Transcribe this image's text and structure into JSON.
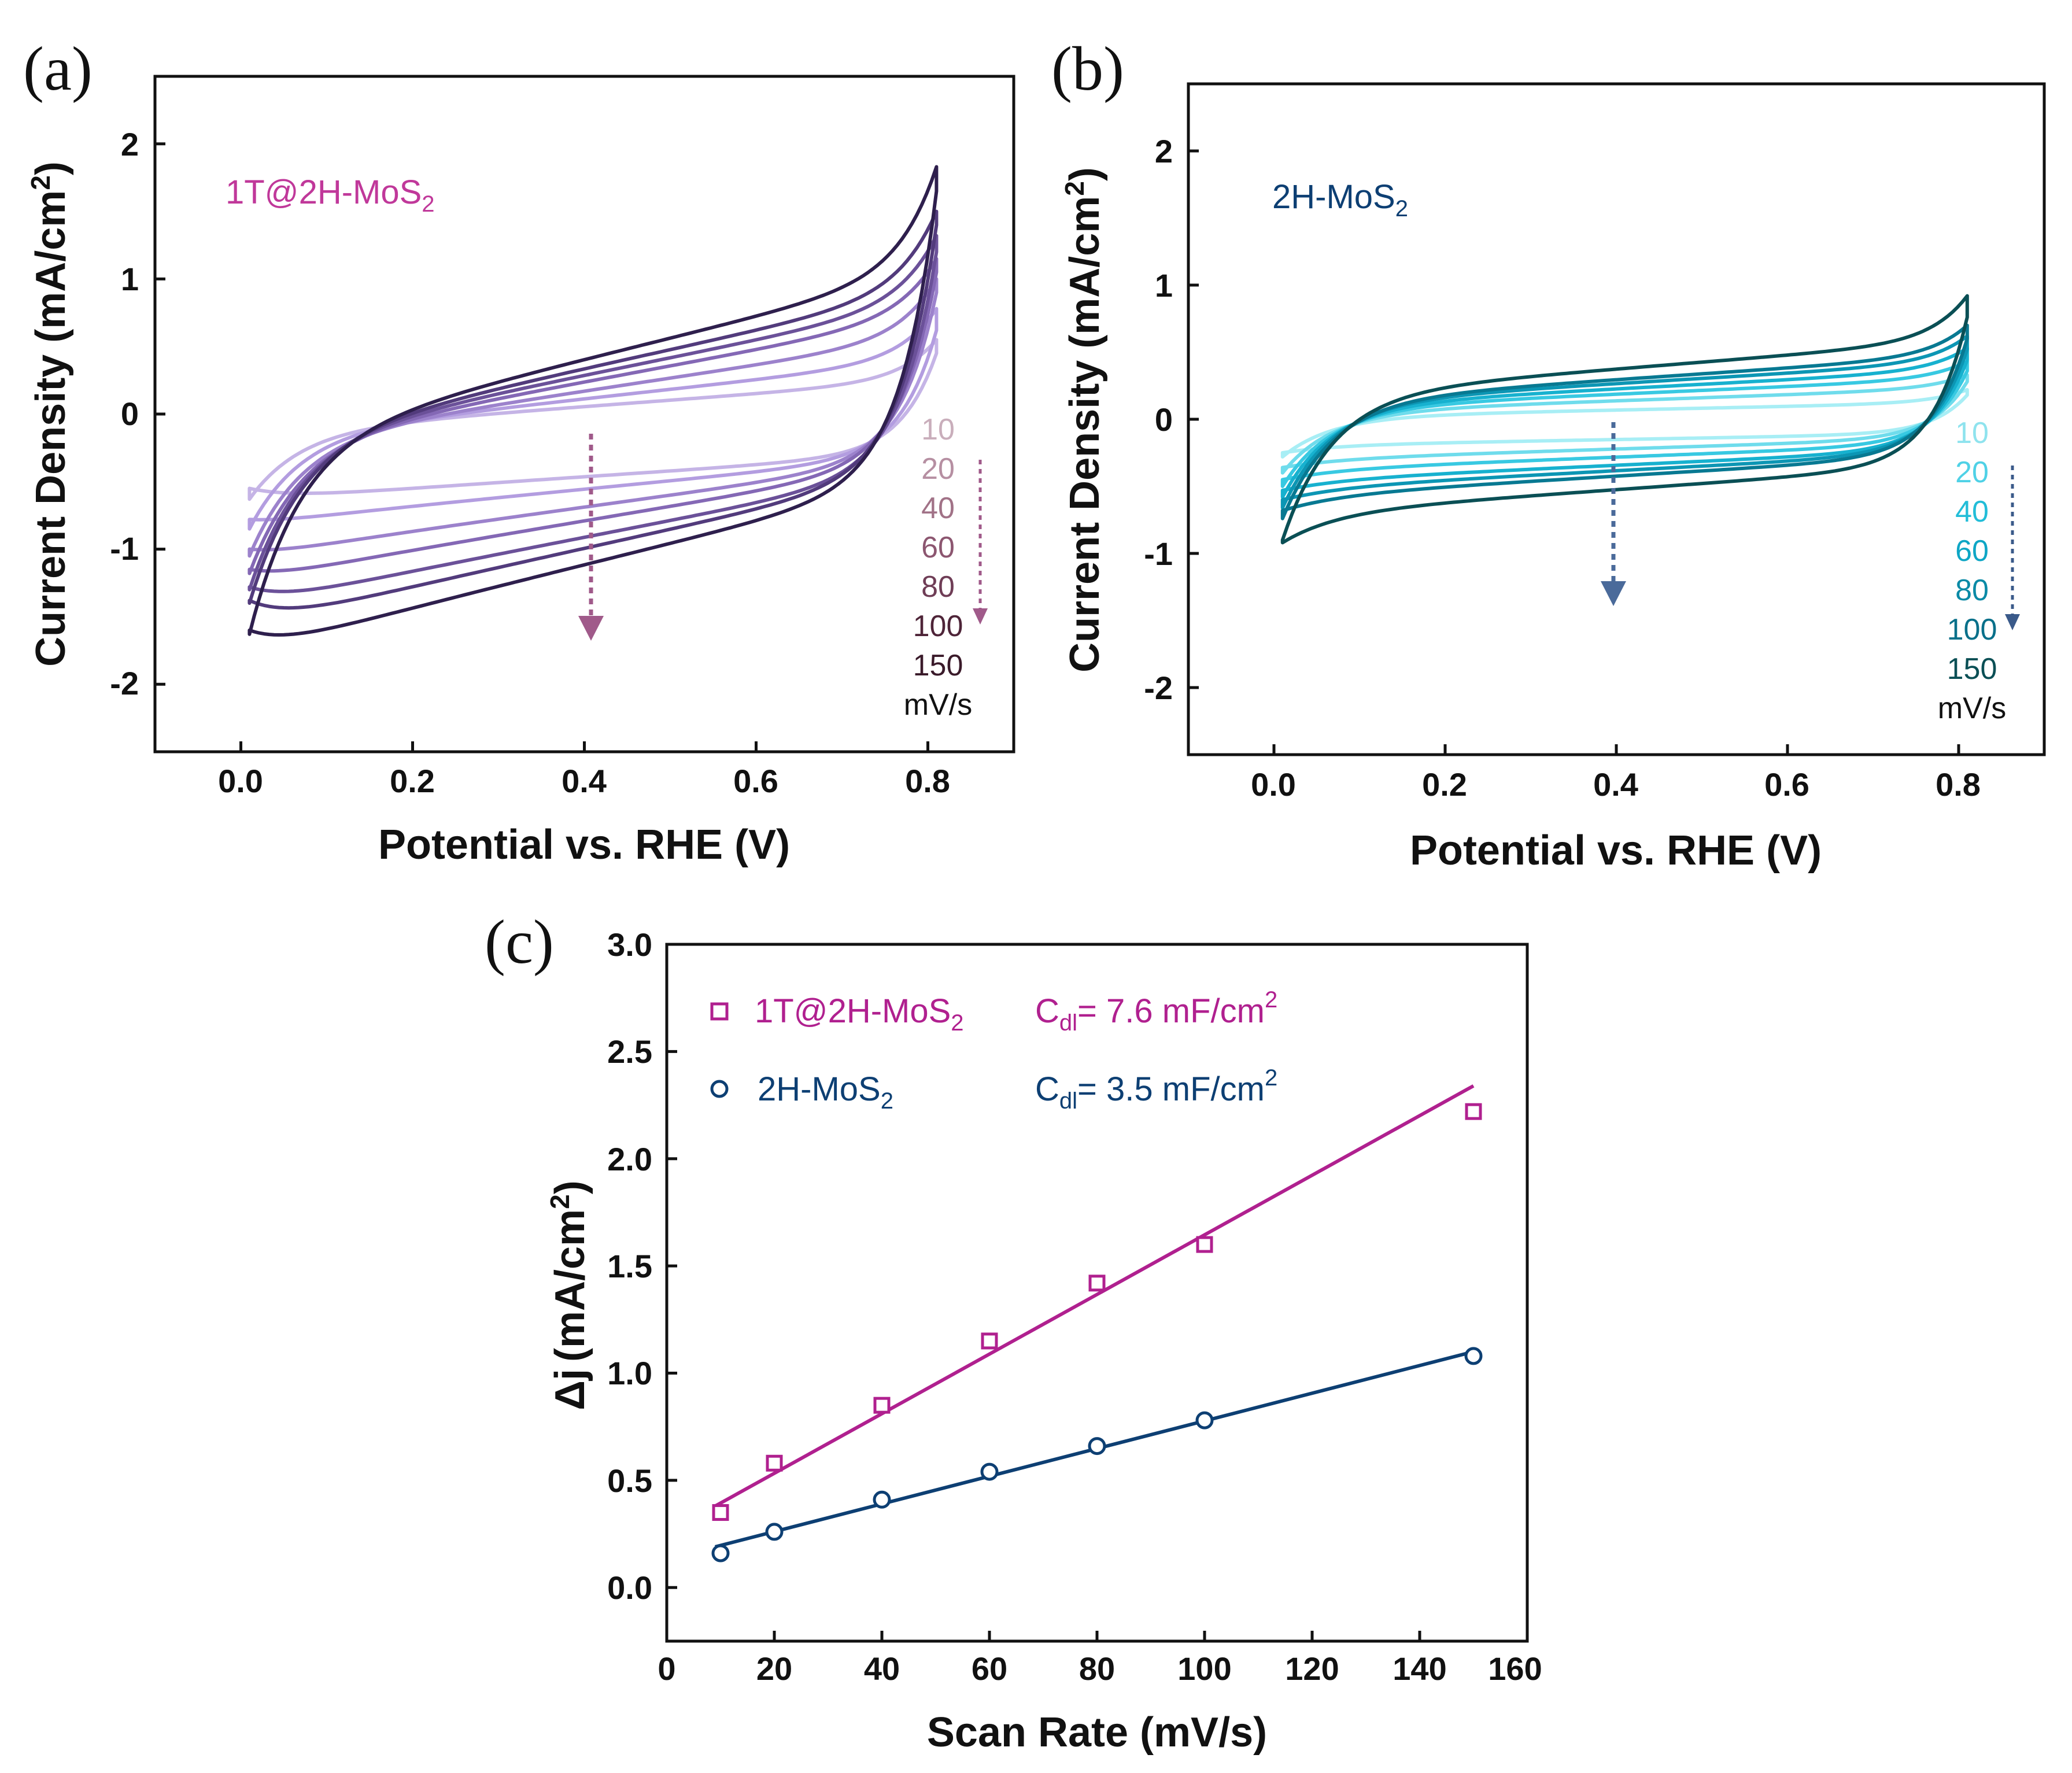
{
  "figure": {
    "panels": [
      "(a)",
      "(b)",
      "(c)"
    ]
  },
  "chart_data": [
    {
      "panel": "(a)",
      "type": "line",
      "subtype": "cyclic-voltammetry",
      "sample_label": "1T@2H-MoS",
      "sample_subscript": "2",
      "xlabel": "Potential vs. RHE (V)",
      "ylabel": "Current Density (mA/cm",
      "ylabel_sup": "2",
      "ylabel_close": ")",
      "xlim": [
        -0.1,
        0.9
      ],
      "ylim": [
        -2.5,
        2.5
      ],
      "xticks": [
        "0.0",
        "0.2",
        "0.4",
        "0.6",
        "0.8"
      ],
      "yticks": [
        "2",
        "1",
        "0",
        "-1",
        "-2"
      ],
      "rates_unit": "mV/s",
      "series": [
        {
          "name": "10",
          "color": "#c5b4e6",
          "E_start": 0.01,
          "E_end": 0.81,
          "anodic_center": 0.06,
          "anodic_slope": 0.42,
          "cathodic_center": -0.46,
          "cathodic_slope": 0.38,
          "start_anodic": -0.63,
          "end_anodic": 0.55,
          "start_cathodic": -0.55,
          "end_cathodic": 0.45
        },
        {
          "name": "20",
          "color": "#b39de0",
          "E_start": 0.01,
          "E_end": 0.81,
          "anodic_center": 0.12,
          "anodic_slope": 0.62,
          "cathodic_center": -0.55,
          "cathodic_slope": 0.55,
          "start_anodic": -0.85,
          "end_anodic": 0.78,
          "start_cathodic": -0.78,
          "end_cathodic": 0.62
        },
        {
          "name": "40",
          "color": "#9c82cc",
          "E_start": 0.01,
          "E_end": 0.81,
          "anodic_center": 0.18,
          "anodic_slope": 0.85,
          "cathodic_center": -0.68,
          "cathodic_slope": 0.78,
          "start_anodic": -1.05,
          "end_anodic": 1.0,
          "start_cathodic": -1.0,
          "end_cathodic": 0.9
        },
        {
          "name": "60",
          "color": "#8468b5",
          "E_start": 0.01,
          "E_end": 0.81,
          "anodic_center": 0.25,
          "anodic_slope": 1.05,
          "cathodic_center": -0.78,
          "cathodic_slope": 0.95,
          "start_anodic": -1.18,
          "end_anodic": 1.15,
          "start_cathodic": -1.15,
          "end_cathodic": 1.05
        },
        {
          "name": "80",
          "color": "#6b5199",
          "E_start": 0.01,
          "E_end": 0.81,
          "anodic_center": 0.3,
          "anodic_slope": 1.15,
          "cathodic_center": -0.9,
          "cathodic_slope": 1.1,
          "start_anodic": -1.3,
          "end_anodic": 1.32,
          "start_cathodic": -1.28,
          "end_cathodic": 1.2
        },
        {
          "name": "100",
          "color": "#523b7c",
          "E_start": 0.01,
          "E_end": 0.81,
          "anodic_center": 0.35,
          "anodic_slope": 1.25,
          "cathodic_center": -0.98,
          "cathodic_slope": 1.25,
          "start_anodic": -1.4,
          "end_anodic": 1.5,
          "start_cathodic": -1.38,
          "end_cathodic": 1.4
        },
        {
          "name": "150",
          "color": "#2e1f4d",
          "E_start": 0.01,
          "E_end": 0.81,
          "anodic_center": 0.42,
          "anodic_slope": 1.4,
          "cathodic_center": -1.1,
          "cathodic_slope": 1.4,
          "start_anodic": -1.63,
          "end_anodic": 1.83,
          "start_cathodic": -1.6,
          "end_cathodic": 1.65
        }
      ],
      "rate_label_colors": [
        "#c9aebb",
        "#b68fa2",
        "#a17287",
        "#8c5670",
        "#6f3d56",
        "#4e2438",
        "#3a1a2a"
      ],
      "rate_arrow_color": "#a05a8a",
      "center_arrow_color": "#a05a8a"
    },
    {
      "panel": "(b)",
      "type": "line",
      "subtype": "cyclic-voltammetry",
      "sample_label": "2H-MoS",
      "sample_subscript": "2",
      "xlabel": "Potential vs. RHE (V)",
      "ylabel": "Current Density (mA/cm",
      "ylabel_sup": "2",
      "ylabel_close": ")",
      "xlim": [
        -0.1,
        0.9
      ],
      "ylim": [
        -2.5,
        2.5
      ],
      "xticks": [
        "0.0",
        "0.2",
        "0.4",
        "0.6",
        "0.8"
      ],
      "yticks": [
        "2",
        "1",
        "0",
        "-1",
        "-2"
      ],
      "rates_unit": "mV/s",
      "series": [
        {
          "name": "10",
          "color": "#a8eef5",
          "E_start": 0.01,
          "E_end": 0.81,
          "anodic_center": 0.07,
          "anodic_slope": 0.12,
          "cathodic_center": -0.15,
          "cathodic_slope": 0.1,
          "start_anodic": -0.28,
          "end_anodic": 0.22,
          "start_cathodic": -0.25,
          "end_cathodic": 0.18
        },
        {
          "name": "20",
          "color": "#6fdcec",
          "E_start": 0.01,
          "E_end": 0.81,
          "anodic_center": 0.14,
          "anodic_slope": 0.2,
          "cathodic_center": -0.22,
          "cathodic_slope": 0.18,
          "start_anodic": -0.4,
          "end_anodic": 0.33,
          "start_cathodic": -0.36,
          "end_cathodic": 0.28
        },
        {
          "name": "40",
          "color": "#38c9e2",
          "E_start": 0.01,
          "E_end": 0.81,
          "anodic_center": 0.19,
          "anodic_slope": 0.25,
          "cathodic_center": -0.28,
          "cathodic_slope": 0.22,
          "start_anodic": -0.5,
          "end_anodic": 0.43,
          "start_cathodic": -0.45,
          "end_cathodic": 0.36
        },
        {
          "name": "60",
          "color": "#17b1cf",
          "E_start": 0.01,
          "E_end": 0.81,
          "anodic_center": 0.23,
          "anodic_slope": 0.3,
          "cathodic_center": -0.34,
          "cathodic_slope": 0.26,
          "start_anodic": -0.58,
          "end_anodic": 0.53,
          "start_cathodic": -0.53,
          "end_cathodic": 0.44
        },
        {
          "name": "80",
          "color": "#0c96b4",
          "E_start": 0.01,
          "E_end": 0.81,
          "anodic_center": 0.27,
          "anodic_slope": 0.34,
          "cathodic_center": -0.38,
          "cathodic_slope": 0.3,
          "start_anodic": -0.66,
          "end_anodic": 0.62,
          "start_cathodic": -0.6,
          "end_cathodic": 0.52
        },
        {
          "name": "100",
          "color": "#087992",
          "E_start": 0.01,
          "E_end": 0.81,
          "anodic_center": 0.3,
          "anodic_slope": 0.38,
          "cathodic_center": -0.42,
          "cathodic_slope": 0.34,
          "start_anodic": -0.74,
          "end_anodic": 0.7,
          "start_cathodic": -0.68,
          "end_cathodic": 0.6
        },
        {
          "name": "150",
          "color": "#0a4f55",
          "E_start": 0.01,
          "E_end": 0.81,
          "anodic_center": 0.38,
          "anodic_slope": 0.45,
          "cathodic_center": -0.52,
          "cathodic_slope": 0.4,
          "start_anodic": -0.9,
          "end_anodic": 0.92,
          "start_cathodic": -0.92,
          "end_cathodic": 0.76
        }
      ],
      "rate_label_colors": [
        "#8fe3ee",
        "#4fd1e6",
        "#22bdd8",
        "#0ea6c5",
        "#0a8aa6",
        "#08708a",
        "#0a4f55"
      ],
      "rate_arrow_color": "#3a5a8a",
      "center_arrow_color": "#4a6a9a"
    },
    {
      "panel": "(c)",
      "type": "scatter",
      "xlabel": "Scan Rate (mV/s)",
      "ylabel_prefix": "Δj",
      "ylabel": "(mA/cm",
      "ylabel_sup": "2",
      "ylabel_close": ")",
      "xlim": [
        0,
        160
      ],
      "ylim": [
        -0.25,
        3.0
      ],
      "xticks": [
        "0",
        "20",
        "40",
        "60",
        "80",
        "100",
        "120",
        "140",
        "160"
      ],
      "yticks": [
        "3.0",
        "2.5",
        "2.0",
        "1.5",
        "1.0",
        "0.5",
        "0.0"
      ],
      "cdl_prefix": "C",
      "cdl_sub": "dl",
      "series": [
        {
          "name": "1T@2H-MoS",
          "name_sub": "2",
          "marker": "square",
          "color": "#b0208f",
          "cdl_value": "=  7.6 mF/cm",
          "cdl_sup": "2",
          "x": [
            10,
            20,
            40,
            60,
            80,
            100,
            150
          ],
          "y": [
            0.35,
            0.58,
            0.85,
            1.15,
            1.42,
            1.6,
            2.22
          ],
          "fit": {
            "x": [
              9,
              150
            ],
            "y": [
              0.38,
              2.34
            ]
          }
        },
        {
          "name": "2H-MoS",
          "name_sub": "2",
          "marker": "circle",
          "color": "#0d3f73",
          "cdl_value": "=  3.5 mF/cm",
          "cdl_sup": "2",
          "x": [
            10,
            20,
            40,
            60,
            80,
            100,
            150
          ],
          "y": [
            0.16,
            0.26,
            0.41,
            0.54,
            0.66,
            0.78,
            1.08
          ],
          "fit": {
            "x": [
              9,
              150
            ],
            "y": [
              0.19,
              1.1
            ]
          }
        }
      ]
    }
  ]
}
